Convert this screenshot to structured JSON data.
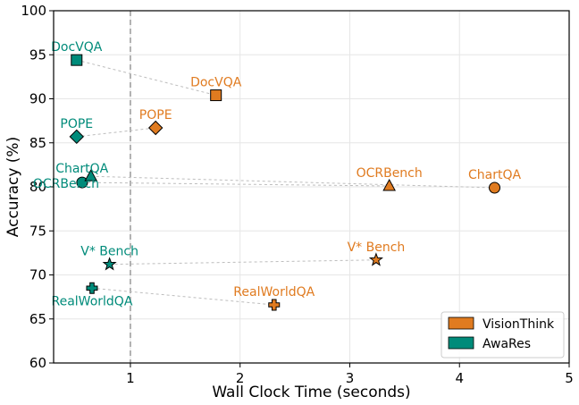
{
  "chart_data": {
    "type": "scatter",
    "title": "",
    "xlabel": "Wall Clock Time (seconds)",
    "ylabel": "Accuracy (%)",
    "xlim": [
      0.3,
      5.0
    ],
    "ylim": [
      60,
      100
    ],
    "xticks": [
      "1",
      "2",
      "3",
      "4",
      "5"
    ],
    "yticks": [
      "60",
      "65",
      "70",
      "75",
      "80",
      "85",
      "90",
      "95",
      "100"
    ],
    "grid": true,
    "reference_line_x": 1.0,
    "legend_position": "bottom-right",
    "series": [
      {
        "name": "VisionThink",
        "color": "#e07b20",
        "points": [
          {
            "label": "DocVQA",
            "x": 1.78,
            "y": 90.4,
            "marker": "square"
          },
          {
            "label": "POPE",
            "x": 1.23,
            "y": 86.7,
            "marker": "diamond"
          },
          {
            "label": "OCRBench",
            "x": 3.36,
            "y": 80.1,
            "marker": "triangle"
          },
          {
            "label": "ChartQA",
            "x": 4.32,
            "y": 79.9,
            "marker": "circle"
          },
          {
            "label": "V* Bench",
            "x": 3.24,
            "y": 71.7,
            "marker": "star"
          },
          {
            "label": "RealWorldQA",
            "x": 2.31,
            "y": 66.6,
            "marker": "plus"
          }
        ]
      },
      {
        "name": "AwaRes",
        "color": "#008b7a",
        "points": [
          {
            "label": "DocVQA",
            "x": 0.51,
            "y": 94.4,
            "marker": "square"
          },
          {
            "label": "POPE",
            "x": 0.51,
            "y": 85.7,
            "marker": "diamond"
          },
          {
            "label": "OCRBench",
            "x": 0.56,
            "y": 80.5,
            "marker": "circle"
          },
          {
            "label": "ChartQA",
            "x": 0.64,
            "y": 81.2,
            "marker": "triangle"
          },
          {
            "label": "V* Bench",
            "x": 0.81,
            "y": 71.2,
            "marker": "star"
          },
          {
            "label": "RealWorldQA",
            "x": 0.65,
            "y": 68.5,
            "marker": "plus"
          }
        ]
      }
    ]
  }
}
